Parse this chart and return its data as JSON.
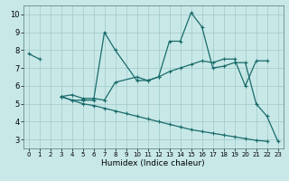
{
  "xlabel": "Humidex (Indice chaleur)",
  "xlim": [
    -0.5,
    23.5
  ],
  "ylim": [
    2.5,
    10.5
  ],
  "yticks": [
    3,
    4,
    5,
    6,
    7,
    8,
    9,
    10
  ],
  "xticks": [
    0,
    1,
    2,
    3,
    4,
    5,
    6,
    7,
    8,
    9,
    10,
    11,
    12,
    13,
    14,
    15,
    16,
    17,
    18,
    19,
    20,
    21,
    22,
    23
  ],
  "bg_color": "#c8e8e8",
  "grid_color": "#a0c8c8",
  "line_color": "#1a6b6b",
  "series1_x": [
    0,
    1
  ],
  "series1_y": [
    7.8,
    7.5
  ],
  "series2_x": [
    3,
    4,
    5,
    6,
    7,
    8,
    10,
    11,
    12,
    13,
    14,
    15,
    16,
    17,
    18,
    19,
    20,
    21,
    22,
    23
  ],
  "series2_y": [
    5.4,
    5.2,
    5.2,
    5.2,
    9.0,
    8.0,
    6.3,
    6.3,
    6.5,
    8.5,
    8.5,
    10.1,
    9.3,
    7.0,
    7.1,
    7.3,
    7.3,
    5.0,
    4.3,
    2.9
  ],
  "series3_x": [
    3,
    4,
    5,
    6,
    7,
    8,
    10,
    11,
    12,
    13,
    14,
    15,
    16,
    17,
    18,
    19,
    20,
    21,
    22
  ],
  "series3_y": [
    5.4,
    5.5,
    5.3,
    5.3,
    5.2,
    6.2,
    6.5,
    6.3,
    6.5,
    6.8,
    7.0,
    7.2,
    7.4,
    7.3,
    7.5,
    7.5,
    6.0,
    7.4,
    7.4
  ],
  "series4_x": [
    3,
    4,
    5,
    6,
    7,
    8,
    9,
    10,
    11,
    12,
    13,
    14,
    15,
    16,
    17,
    18,
    19,
    20,
    21,
    22
  ],
  "series4_y": [
    5.4,
    5.2,
    5.0,
    4.9,
    4.75,
    4.6,
    4.45,
    4.3,
    4.15,
    4.0,
    3.85,
    3.7,
    3.55,
    3.45,
    3.35,
    3.25,
    3.15,
    3.05,
    2.95,
    2.9
  ]
}
